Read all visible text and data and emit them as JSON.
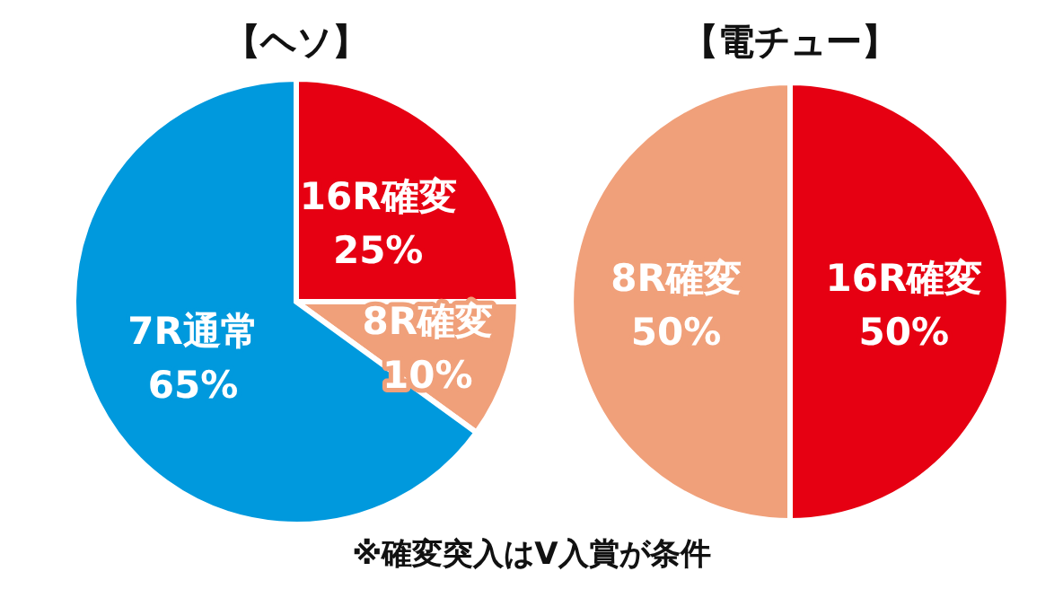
{
  "chart_data": [
    {
      "type": "pie",
      "title": "【ヘソ】",
      "categories": [
        "16R確変",
        "8R確変",
        "7R通常"
      ],
      "values": [
        25,
        10,
        65
      ],
      "value_labels": [
        "25%",
        "10%",
        "65%"
      ],
      "colors": [
        "#e60012",
        "#f0a07a",
        "#0099dd"
      ],
      "annotations": [
        "※確変突入はV入賞が条件"
      ]
    },
    {
      "type": "pie",
      "title": "【電チュー】",
      "categories": [
        "16R確変",
        "8R確変"
      ],
      "values": [
        50,
        50
      ],
      "value_labels": [
        "50%",
        "50%"
      ],
      "colors": [
        "#e60012",
        "#f0a07a"
      ]
    }
  ]
}
